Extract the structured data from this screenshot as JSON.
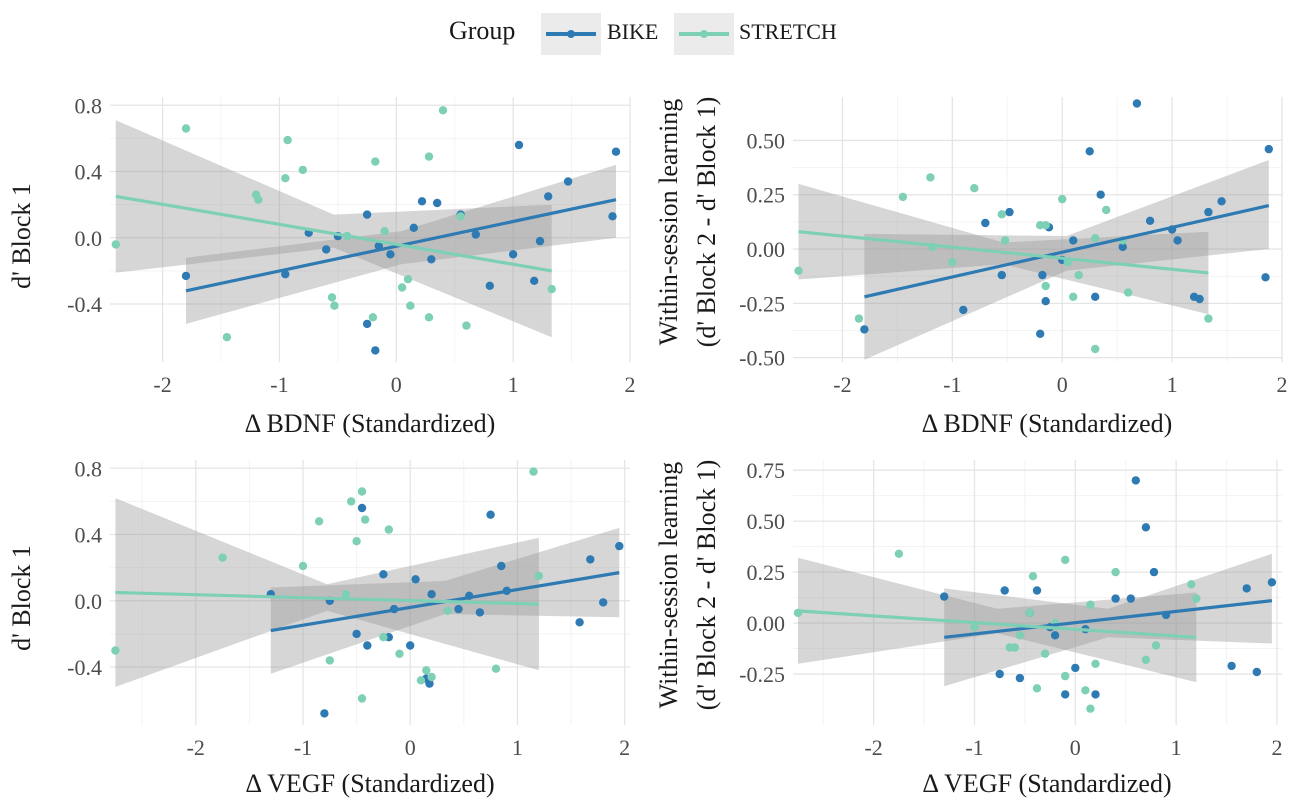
{
  "legend": {
    "title": "Group",
    "entries": [
      {
        "name": "BIKE",
        "color": "#2e7ab3"
      },
      {
        "name": "STRETCH",
        "color": "#7dcfb6"
      }
    ]
  },
  "chart_data": [
    {
      "type": "scatter",
      "id": "bdnf-block1",
      "title": "",
      "xlabel": "Δ BDNF (Standardized)",
      "ylabel_lines": [
        "d' Block 1"
      ],
      "xlim": [
        -2.45,
        2.0
      ],
      "ylim": [
        -0.75,
        0.85
      ],
      "xticks": [
        -2,
        -1,
        0,
        1,
        2
      ],
      "xtick_labels": [
        "-2",
        "-1",
        "0",
        "1",
        "2"
      ],
      "yticks": [
        -0.4,
        0.0,
        0.4,
        0.8
      ],
      "ytick_labels": [
        "-0.4",
        "0.0",
        "0.4",
        "0.8"
      ],
      "series": [
        {
          "name": "BIKE",
          "points": [
            [
              -1.8,
              -0.23
            ],
            [
              -0.95,
              -0.22
            ],
            [
              -0.75,
              0.03
            ],
            [
              -0.6,
              -0.07
            ],
            [
              -0.5,
              0.01
            ],
            [
              -0.25,
              -0.52
            ],
            [
              -0.25,
              0.14
            ],
            [
              -0.18,
              -0.68
            ],
            [
              -0.15,
              -0.05
            ],
            [
              -0.05,
              -0.1
            ],
            [
              0.15,
              0.06
            ],
            [
              0.22,
              0.22
            ],
            [
              0.3,
              -0.13
            ],
            [
              0.35,
              0.21
            ],
            [
              0.55,
              0.14
            ],
            [
              0.68,
              0.02
            ],
            [
              0.8,
              -0.29
            ],
            [
              1.0,
              -0.1
            ],
            [
              1.05,
              0.56
            ],
            [
              1.18,
              -0.26
            ],
            [
              1.23,
              -0.02
            ],
            [
              1.3,
              0.25
            ],
            [
              1.47,
              0.34
            ],
            [
              1.85,
              0.13
            ],
            [
              1.88,
              0.52
            ]
          ],
          "fit": [
            [
              -1.8,
              -0.32
            ],
            [
              1.88,
              0.23
            ]
          ],
          "ci_low": [
            -0.52,
            -0.16,
            0.0
          ],
          "ci_high": [
            -0.12,
            0.04,
            0.44
          ]
        },
        {
          "name": "STRETCH",
          "points": [
            [
              -2.4,
              -0.04
            ],
            [
              -1.8,
              0.66
            ],
            [
              -1.45,
              -0.6
            ],
            [
              -1.2,
              0.26
            ],
            [
              -1.18,
              0.23
            ],
            [
              -0.95,
              0.36
            ],
            [
              -0.93,
              0.59
            ],
            [
              -0.8,
              0.41
            ],
            [
              -0.55,
              -0.36
            ],
            [
              -0.53,
              -0.41
            ],
            [
              -0.42,
              0.01
            ],
            [
              -0.2,
              -0.48
            ],
            [
              -0.18,
              0.46
            ],
            [
              -0.1,
              0.04
            ],
            [
              0.05,
              -0.3
            ],
            [
              0.1,
              -0.25
            ],
            [
              0.12,
              -0.41
            ],
            [
              0.28,
              -0.48
            ],
            [
              0.28,
              0.49
            ],
            [
              0.4,
              0.77
            ],
            [
              0.55,
              0.13
            ],
            [
              0.6,
              -0.53
            ],
            [
              1.33,
              -0.31
            ]
          ],
          "fit": [
            [
              -2.4,
              0.25
            ],
            [
              1.33,
              -0.2
            ]
          ],
          "ci_low": [
            -0.21,
            -0.06,
            -0.6
          ],
          "ci_high": [
            0.71,
            0.14,
            0.2
          ]
        }
      ]
    },
    {
      "type": "scatter",
      "id": "bdnf-learning",
      "title": "",
      "xlabel": "Δ BDNF (Standardized)",
      "ylabel_lines": [
        "Within-session learning",
        "(d' Block 2 - d' Block 1)"
      ],
      "xlim": [
        -2.45,
        2.0
      ],
      "ylim": [
        -0.52,
        0.7
      ],
      "xticks": [
        -2,
        -1,
        0,
        1,
        2
      ],
      "xtick_labels": [
        "-2",
        "-1",
        "0",
        "1",
        "2"
      ],
      "yticks": [
        -0.5,
        -0.25,
        0.0,
        0.25,
        0.5
      ],
      "ytick_labels": [
        "-0.50",
        "-0.25",
        "0.00",
        "0.25",
        "0.50"
      ],
      "series": [
        {
          "name": "BIKE",
          "points": [
            [
              -1.8,
              -0.37
            ],
            [
              -0.9,
              -0.28
            ],
            [
              -0.7,
              0.12
            ],
            [
              -0.55,
              -0.12
            ],
            [
              -0.48,
              0.17
            ],
            [
              -0.2,
              -0.39
            ],
            [
              -0.18,
              -0.12
            ],
            [
              -0.15,
              -0.24
            ],
            [
              -0.12,
              0.1
            ],
            [
              0.0,
              -0.05
            ],
            [
              0.1,
              0.04
            ],
            [
              0.25,
              0.45
            ],
            [
              0.3,
              -0.22
            ],
            [
              0.35,
              0.25
            ],
            [
              0.55,
              0.01
            ],
            [
              0.68,
              0.67
            ],
            [
              0.8,
              0.13
            ],
            [
              1.0,
              0.09
            ],
            [
              1.05,
              0.04
            ],
            [
              1.2,
              -0.22
            ],
            [
              1.25,
              -0.23
            ],
            [
              1.33,
              0.17
            ],
            [
              1.45,
              0.22
            ],
            [
              1.85,
              -0.13
            ],
            [
              1.88,
              0.46
            ]
          ],
          "fit": [
            [
              -1.8,
              -0.22
            ],
            [
              1.88,
              0.2
            ]
          ],
          "ci_low": [
            -0.51,
            -0.1,
            0.0
          ],
          "ci_high": [
            0.07,
            0.06,
            0.41
          ]
        },
        {
          "name": "STRETCH",
          "points": [
            [
              -2.4,
              -0.1
            ],
            [
              -1.85,
              -0.32
            ],
            [
              -1.45,
              0.24
            ],
            [
              -1.2,
              0.33
            ],
            [
              -1.18,
              0.01
            ],
            [
              -1.0,
              -0.06
            ],
            [
              -0.8,
              0.28
            ],
            [
              -0.55,
              0.16
            ],
            [
              -0.52,
              0.04
            ],
            [
              -0.2,
              0.11
            ],
            [
              -0.15,
              0.11
            ],
            [
              -0.15,
              -0.17
            ],
            [
              0.0,
              0.23
            ],
            [
              0.05,
              -0.06
            ],
            [
              0.1,
              -0.22
            ],
            [
              0.15,
              -0.12
            ],
            [
              0.3,
              -0.46
            ],
            [
              0.3,
              0.05
            ],
            [
              0.4,
              0.18
            ],
            [
              0.55,
              0.04
            ],
            [
              0.6,
              -0.2
            ],
            [
              1.33,
              -0.32
            ]
          ],
          "fit": [
            [
              -2.4,
              0.08
            ],
            [
              1.33,
              -0.11
            ]
          ],
          "ci_low": [
            -0.14,
            -0.07,
            -0.3
          ],
          "ci_high": [
            0.3,
            0.03,
            0.08
          ]
        }
      ]
    },
    {
      "type": "scatter",
      "id": "vegf-block1",
      "title": "",
      "xlabel": "Δ VEGF (Standardized)",
      "ylabel_lines": [
        "d' Block 1"
      ],
      "xlim": [
        -2.8,
        2.05
      ],
      "ylim": [
        -0.75,
        0.85
      ],
      "xticks": [
        -2,
        -1,
        0,
        1,
        2
      ],
      "xtick_labels": [
        "-2",
        "-1",
        "0",
        "1",
        "2"
      ],
      "yticks": [
        -0.4,
        0.0,
        0.4,
        0.8
      ],
      "ytick_labels": [
        "-0.4",
        "0.0",
        "0.4",
        "0.8"
      ],
      "series": [
        {
          "name": "BIKE",
          "points": [
            [
              -1.3,
              0.04
            ],
            [
              -0.8,
              -0.68
            ],
            [
              -0.75,
              0.0
            ],
            [
              -0.5,
              -0.2
            ],
            [
              -0.45,
              0.56
            ],
            [
              -0.4,
              -0.27
            ],
            [
              -0.25,
              0.16
            ],
            [
              -0.2,
              -0.22
            ],
            [
              -0.15,
              -0.05
            ],
            [
              0.0,
              -0.27
            ],
            [
              0.05,
              0.13
            ],
            [
              0.15,
              -0.47
            ],
            [
              0.18,
              -0.5
            ],
            [
              0.2,
              0.04
            ],
            [
              0.45,
              -0.05
            ],
            [
              0.55,
              0.03
            ],
            [
              0.65,
              -0.07
            ],
            [
              0.75,
              0.52
            ],
            [
              0.85,
              0.21
            ],
            [
              0.9,
              0.06
            ],
            [
              1.58,
              -0.13
            ],
            [
              1.68,
              0.25
            ],
            [
              1.8,
              -0.01
            ],
            [
              1.95,
              0.33
            ]
          ],
          "fit": [
            [
              -1.3,
              -0.18
            ],
            [
              1.95,
              0.17
            ]
          ],
          "ci_low": [
            -0.44,
            -0.08,
            -0.1
          ],
          "ci_high": [
            0.08,
            0.12,
            0.44
          ]
        },
        {
          "name": "STRETCH",
          "points": [
            [
              -2.75,
              -0.3
            ],
            [
              -1.75,
              0.26
            ],
            [
              -1.0,
              0.21
            ],
            [
              -0.85,
              0.48
            ],
            [
              -0.75,
              -0.36
            ],
            [
              -0.6,
              0.04
            ],
            [
              -0.55,
              0.6
            ],
            [
              -0.5,
              0.36
            ],
            [
              -0.45,
              0.66
            ],
            [
              -0.45,
              -0.59
            ],
            [
              -0.42,
              0.49
            ],
            [
              -0.25,
              -0.22
            ],
            [
              -0.2,
              0.43
            ],
            [
              -0.1,
              -0.32
            ],
            [
              0.1,
              -0.48
            ],
            [
              0.15,
              -0.42
            ],
            [
              0.2,
              -0.46
            ],
            [
              0.35,
              -0.06
            ],
            [
              0.8,
              -0.41
            ],
            [
              1.15,
              0.78
            ],
            [
              1.2,
              0.15
            ]
          ],
          "fit": [
            [
              -2.75,
              0.05
            ],
            [
              1.2,
              -0.02
            ]
          ],
          "ci_low": [
            -0.52,
            -0.06,
            -0.42
          ],
          "ci_high": [
            0.62,
            0.1,
            0.38
          ]
        }
      ]
    },
    {
      "type": "scatter",
      "id": "vegf-learning",
      "title": "",
      "xlabel": "Δ VEGF (Standardized)",
      "ylabel_lines": [
        "Within-session learning",
        "(d' Block 2 - d' Block 1)"
      ],
      "xlim": [
        -2.8,
        2.05
      ],
      "ylim": [
        -0.5,
        0.8
      ],
      "xticks": [
        -2,
        -1,
        0,
        1,
        2
      ],
      "xtick_labels": [
        "-2",
        "-1",
        "0",
        "1",
        "2"
      ],
      "yticks": [
        -0.25,
        0.0,
        0.25,
        0.5,
        0.75
      ],
      "ytick_labels": [
        "-0.25",
        "0.00",
        "0.25",
        "0.50",
        "0.75"
      ],
      "series": [
        {
          "name": "BIKE",
          "points": [
            [
              -1.3,
              0.13
            ],
            [
              -0.75,
              -0.25
            ],
            [
              -0.7,
              0.16
            ],
            [
              -0.55,
              -0.27
            ],
            [
              -0.45,
              0.05
            ],
            [
              -0.38,
              0.16
            ],
            [
              -0.25,
              -0.02
            ],
            [
              -0.2,
              -0.06
            ],
            [
              -0.1,
              -0.35
            ],
            [
              0.0,
              -0.22
            ],
            [
              0.1,
              -0.03
            ],
            [
              0.2,
              -0.35
            ],
            [
              0.4,
              0.12
            ],
            [
              0.55,
              0.12
            ],
            [
              0.6,
              0.7
            ],
            [
              0.7,
              0.47
            ],
            [
              0.78,
              0.25
            ],
            [
              0.9,
              0.04
            ],
            [
              1.55,
              -0.21
            ],
            [
              1.7,
              0.17
            ],
            [
              1.8,
              -0.24
            ],
            [
              1.95,
              0.2
            ]
          ],
          "fit": [
            [
              -1.3,
              -0.07
            ],
            [
              1.95,
              0.11
            ]
          ],
          "ci_low": [
            -0.31,
            -0.07,
            -0.1
          ],
          "ci_high": [
            0.17,
            0.07,
            0.34
          ]
        },
        {
          "name": "STRETCH",
          "points": [
            [
              -2.75,
              0.05
            ],
            [
              -1.75,
              0.34
            ],
            [
              -1.0,
              -0.02
            ],
            [
              -0.65,
              -0.12
            ],
            [
              -0.6,
              -0.12
            ],
            [
              -0.55,
              -0.06
            ],
            [
              -0.45,
              0.05
            ],
            [
              -0.42,
              0.23
            ],
            [
              -0.38,
              -0.32
            ],
            [
              -0.3,
              -0.15
            ],
            [
              -0.2,
              0.0
            ],
            [
              -0.1,
              -0.26
            ],
            [
              -0.1,
              0.31
            ],
            [
              0.1,
              -0.33
            ],
            [
              0.15,
              0.09
            ],
            [
              0.15,
              -0.42
            ],
            [
              0.2,
              -0.2
            ],
            [
              0.4,
              0.25
            ],
            [
              0.7,
              -0.18
            ],
            [
              0.8,
              -0.11
            ],
            [
              1.15,
              0.19
            ],
            [
              1.2,
              0.12
            ]
          ],
          "fit": [
            [
              -2.75,
              0.06
            ],
            [
              1.2,
              -0.07
            ]
          ],
          "ci_low": [
            -0.2,
            -0.05,
            -0.29
          ],
          "ci_high": [
            0.32,
            0.07,
            0.15
          ]
        }
      ]
    }
  ]
}
